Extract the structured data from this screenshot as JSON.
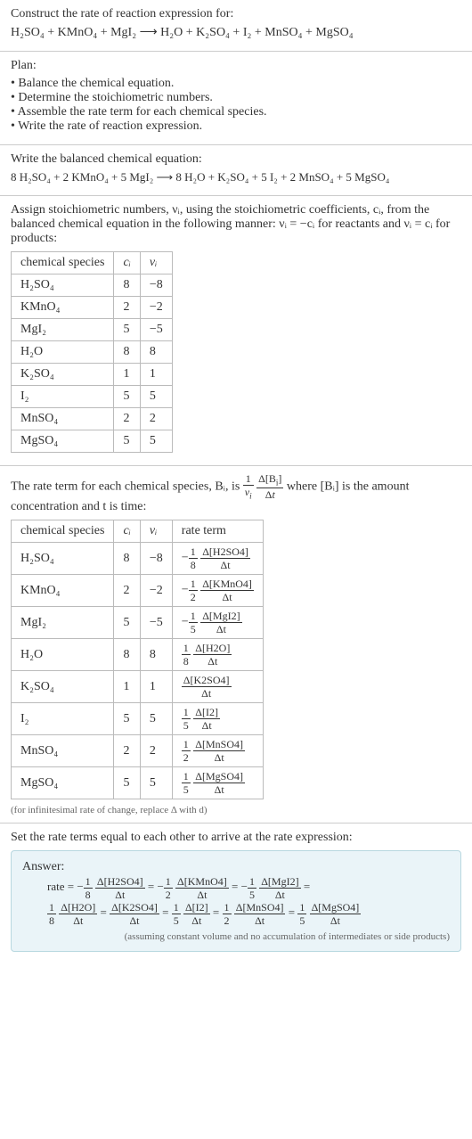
{
  "intro": {
    "line1": "Construct the rate of reaction expression for:",
    "equation": "H₂SO₄ + KMnO₄ + MgI₂  ⟶  H₂O + K₂SO₄ + I₂ + MnSO₄ + MgSO₄"
  },
  "plan": {
    "title": "Plan:",
    "items": [
      "Balance the chemical equation.",
      "Determine the stoichiometric numbers.",
      "Assemble the rate term for each chemical species.",
      "Write the rate of reaction expression."
    ]
  },
  "balanced": {
    "title": "Write the balanced chemical equation:",
    "equation": "8 H₂SO₄ + 2 KMnO₄ + 5 MgI₂  ⟶  8 H₂O + K₂SO₄ + 5 I₂ + 2 MnSO₄ + 5 MgSO₄"
  },
  "stoich": {
    "intro1": "Assign stoichiometric numbers, νᵢ, using the stoichiometric coefficients, cᵢ, from the balanced chemical equation in the following manner: νᵢ = −cᵢ for reactants and νᵢ = cᵢ for products:",
    "headers": [
      "chemical species",
      "cᵢ",
      "νᵢ"
    ],
    "rows": [
      [
        "H₂SO₄",
        "8",
        "−8"
      ],
      [
        "KMnO₄",
        "2",
        "−2"
      ],
      [
        "MgI₂",
        "5",
        "−5"
      ],
      [
        "H₂O",
        "8",
        "8"
      ],
      [
        "K₂SO₄",
        "1",
        "1"
      ],
      [
        "I₂",
        "5",
        "5"
      ],
      [
        "MnSO₄",
        "2",
        "2"
      ],
      [
        "MgSO₄",
        "5",
        "5"
      ]
    ]
  },
  "rateterm": {
    "intro_pre": "The rate term for each chemical species, Bᵢ, is ",
    "intro_post": " where [Bᵢ] is the amount concentration and t is time:",
    "headers": [
      "chemical species",
      "cᵢ",
      "νᵢ",
      "rate term"
    ],
    "rows": [
      {
        "sp": "H₂SO₄",
        "c": "8",
        "v": "−8",
        "sign": "−",
        "fn": "1",
        "fd": "8",
        "dn": "Δ[H2SO4]",
        "dd": "Δt"
      },
      {
        "sp": "KMnO₄",
        "c": "2",
        "v": "−2",
        "sign": "−",
        "fn": "1",
        "fd": "2",
        "dn": "Δ[KMnO4]",
        "dd": "Δt"
      },
      {
        "sp": "MgI₂",
        "c": "5",
        "v": "−5",
        "sign": "−",
        "fn": "1",
        "fd": "5",
        "dn": "Δ[MgI2]",
        "dd": "Δt"
      },
      {
        "sp": "H₂O",
        "c": "8",
        "v": "8",
        "sign": "",
        "fn": "1",
        "fd": "8",
        "dn": "Δ[H2O]",
        "dd": "Δt"
      },
      {
        "sp": "K₂SO₄",
        "c": "1",
        "v": "1",
        "sign": "",
        "fn": "",
        "fd": "",
        "dn": "Δ[K2SO4]",
        "dd": "Δt"
      },
      {
        "sp": "I₂",
        "c": "5",
        "v": "5",
        "sign": "",
        "fn": "1",
        "fd": "5",
        "dn": "Δ[I2]",
        "dd": "Δt"
      },
      {
        "sp": "MnSO₄",
        "c": "2",
        "v": "2",
        "sign": "",
        "fn": "1",
        "fd": "2",
        "dn": "Δ[MnSO4]",
        "dd": "Δt"
      },
      {
        "sp": "MgSO₄",
        "c": "5",
        "v": "5",
        "sign": "",
        "fn": "1",
        "fd": "5",
        "dn": "Δ[MgSO4]",
        "dd": "Δt"
      }
    ],
    "note": "(for infinitesimal rate of change, replace Δ with d)"
  },
  "final": {
    "title": "Set the rate terms equal to each other to arrive at the rate expression:",
    "answer_label": "Answer:",
    "rate_prefix": "rate = ",
    "terms": [
      {
        "sign": "−",
        "fn": "1",
        "fd": "8",
        "dn": "Δ[H2SO4]",
        "dd": "Δt"
      },
      {
        "sign": "−",
        "fn": "1",
        "fd": "2",
        "dn": "Δ[KMnO4]",
        "dd": "Δt"
      },
      {
        "sign": "−",
        "fn": "1",
        "fd": "5",
        "dn": "Δ[MgI2]",
        "dd": "Δt"
      },
      {
        "sign": "",
        "fn": "1",
        "fd": "8",
        "dn": "Δ[H2O]",
        "dd": "Δt"
      },
      {
        "sign": "",
        "fn": "",
        "fd": "",
        "dn": "Δ[K2SO4]",
        "dd": "Δt"
      },
      {
        "sign": "",
        "fn": "1",
        "fd": "5",
        "dn": "Δ[I2]",
        "dd": "Δt"
      },
      {
        "sign": "",
        "fn": "1",
        "fd": "2",
        "dn": "Δ[MnSO4]",
        "dd": "Δt"
      },
      {
        "sign": "",
        "fn": "1",
        "fd": "5",
        "dn": "Δ[MgSO4]",
        "dd": "Δt"
      }
    ],
    "note": "(assuming constant volume and no accumulation of intermediates or side products)"
  }
}
